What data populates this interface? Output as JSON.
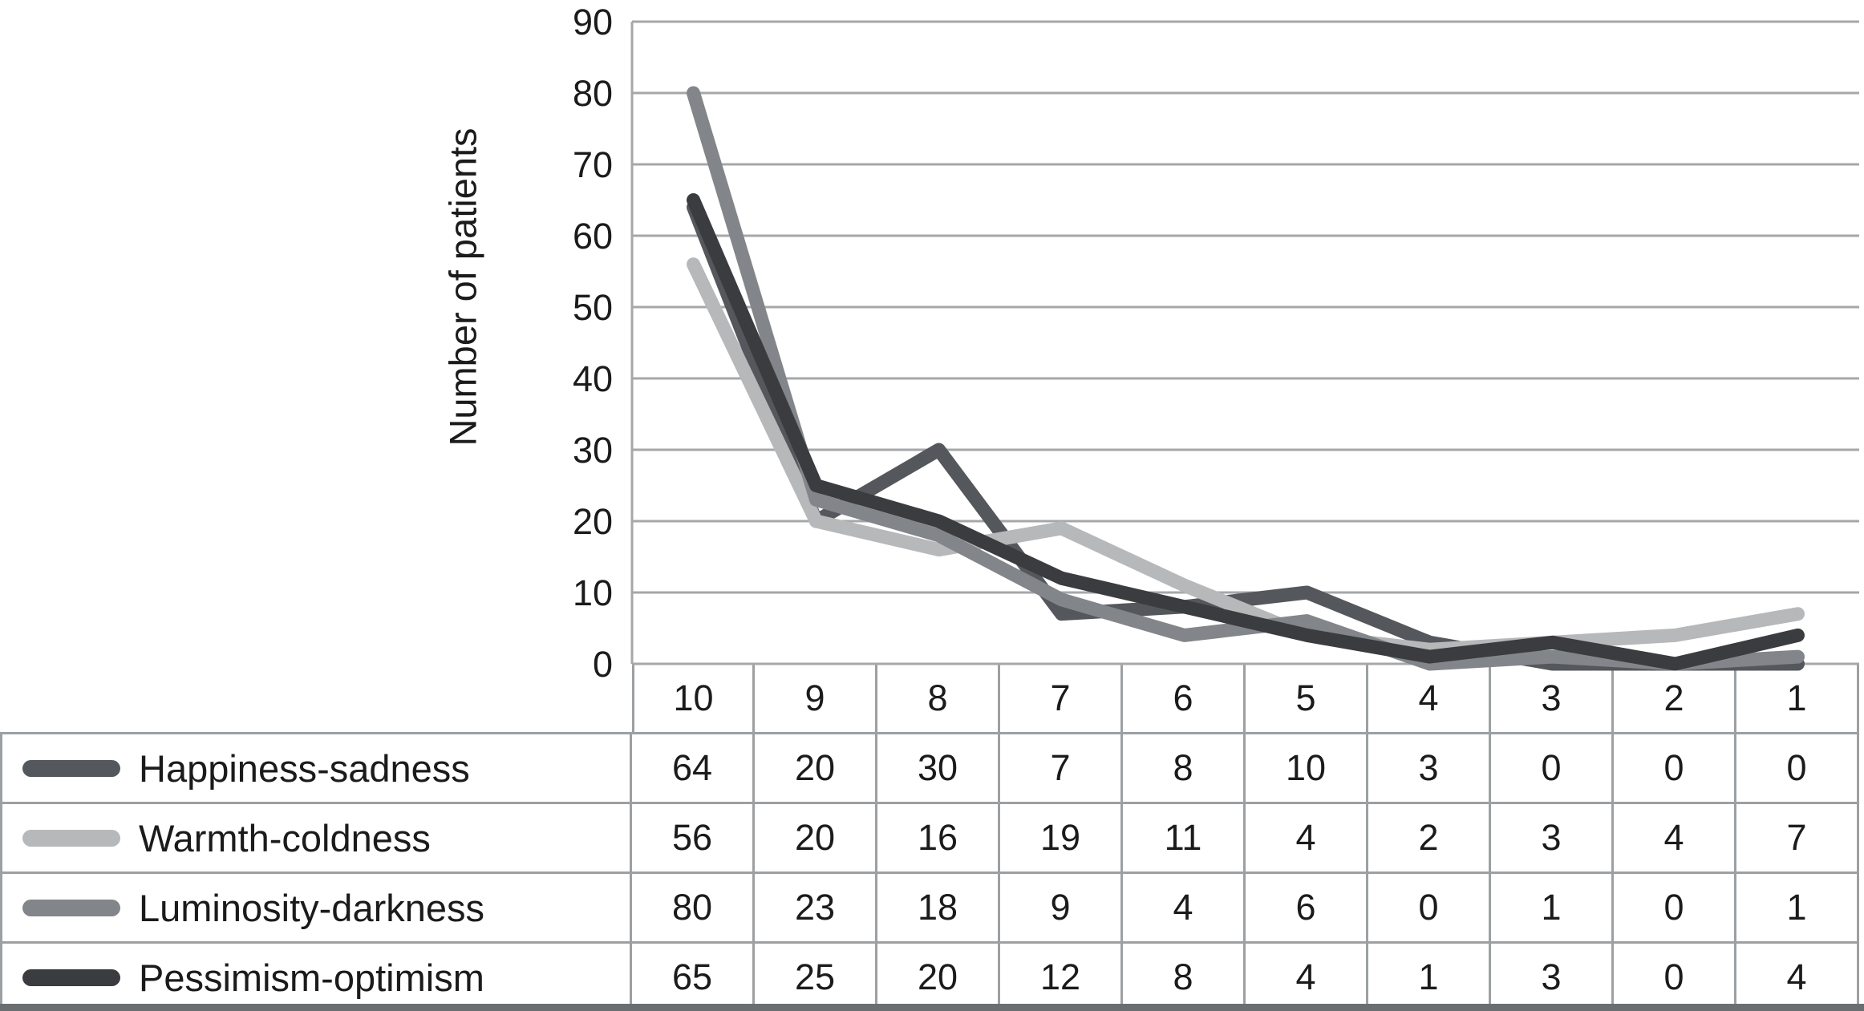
{
  "chart_data": {
    "type": "line",
    "title": "",
    "xlabel": "",
    "ylabel": "Number of patients",
    "ylim": [
      0,
      90
    ],
    "y_ticks": [
      90,
      80,
      70,
      60,
      50,
      40,
      30,
      20,
      10,
      0
    ],
    "grid": "horizontal-major-only",
    "legend_position": "table-left-below-chart",
    "categories": [
      "10",
      "9",
      "8",
      "7",
      "6",
      "5",
      "4",
      "3",
      "2",
      "1"
    ],
    "series": [
      {
        "name": "Happiness-sadness",
        "color": "#54575b",
        "values": [
          64,
          20,
          30,
          7,
          8,
          10,
          3,
          0,
          0,
          0
        ]
      },
      {
        "name": "Warmth-coldness",
        "color": "#b6b8ba",
        "values": [
          56,
          20,
          16,
          19,
          11,
          4,
          2,
          3,
          4,
          7
        ]
      },
      {
        "name": "Luminosity-darkness",
        "color": "#828589",
        "values": [
          80,
          23,
          18,
          9,
          4,
          6,
          0,
          1,
          0,
          1
        ]
      },
      {
        "name": "Pessimism-optimism",
        "color": "#3a3c3f",
        "values": [
          65,
          25,
          20,
          12,
          8,
          4,
          1,
          3,
          0,
          4
        ]
      }
    ]
  },
  "colors": {
    "grid": "#a5a7a9",
    "table_border": "#9da0a2",
    "bottom_border": "#6b6e71",
    "text": "#1b1b1b",
    "background": "#ffffff"
  }
}
